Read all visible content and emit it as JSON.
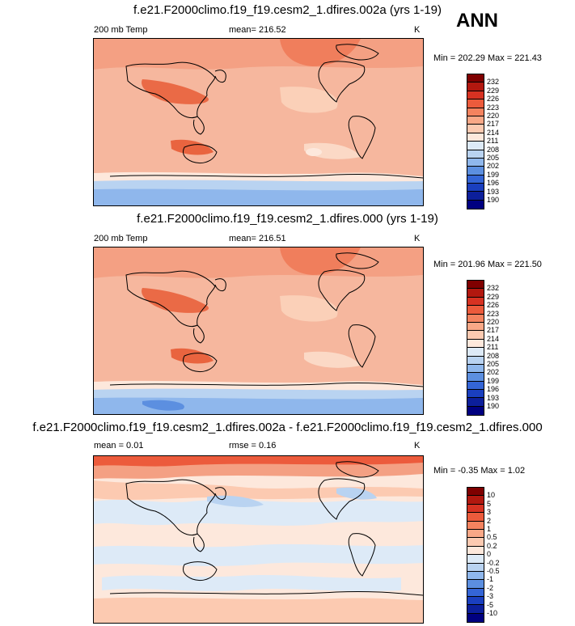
{
  "season": "ANN",
  "panels": [
    {
      "title": "f.e21.F2000climo.f19_f19.cesm2_1.dfires.002a (yrs 1-19)",
      "left_label": "200 mb Temp",
      "center_label": "mean= 216.52",
      "units": "K",
      "minmax": "Min = 202.29 Max = 221.43",
      "colorbar_levels": [
        "232",
        "229",
        "226",
        "223",
        "220",
        "217",
        "214",
        "211",
        "208",
        "205",
        "202",
        "199",
        "196",
        "193",
        "190"
      ],
      "colorbar_colors": [
        "#7f0000",
        "#b2180f",
        "#d73222",
        "#ec5b3c",
        "#f4835f",
        "#f9a887",
        "#fccab1",
        "#fde8dc",
        "#ddeaf7",
        "#b9d3f1",
        "#8fb7ec",
        "#5c8fe0",
        "#3465d6",
        "#1a3fbf",
        "#0c1f9b",
        "#000080"
      ]
    },
    {
      "title": "f.e21.F2000climo.f19_f19.cesm2_1.dfires.000 (yrs 1-19)",
      "left_label": "200 mb Temp",
      "center_label": "mean= 216.51",
      "units": "K",
      "minmax": "Min = 201.96 Max = 221.50",
      "colorbar_levels": [
        "232",
        "229",
        "226",
        "223",
        "220",
        "217",
        "214",
        "211",
        "208",
        "205",
        "202",
        "199",
        "196",
        "193",
        "190"
      ],
      "colorbar_colors": [
        "#7f0000",
        "#b2180f",
        "#d73222",
        "#ec5b3c",
        "#f4835f",
        "#f9a887",
        "#fccab1",
        "#fde8dc",
        "#ddeaf7",
        "#b9d3f1",
        "#8fb7ec",
        "#5c8fe0",
        "#3465d6",
        "#1a3fbf",
        "#0c1f9b",
        "#000080"
      ]
    },
    {
      "title": "f.e21.F2000climo.f19_f19.cesm2_1.dfires.002a - f.e21.F2000climo.f19_f19.cesm2_1.dfires.000",
      "left_label": "mean =  0.01",
      "center_label": "rmse =  0.16",
      "units": "K",
      "minmax": "Min =  -0.35 Max =  1.02",
      "colorbar_levels": [
        "10",
        "5",
        "3",
        "2",
        "1",
        "0.5",
        "0.2",
        "0",
        "-0.2",
        "-0.5",
        "-1",
        "-2",
        "-3",
        "-5",
        "-10"
      ],
      "colorbar_colors": [
        "#7f0000",
        "#b2180f",
        "#d73222",
        "#ec5b3c",
        "#f4835f",
        "#f9a887",
        "#fccab1",
        "#fde8dc",
        "#ddeaf7",
        "#b9d3f1",
        "#8fb7ec",
        "#5c8fe0",
        "#3465d6",
        "#1a3fbf",
        "#0c1f9b",
        "#000080"
      ]
    }
  ]
}
